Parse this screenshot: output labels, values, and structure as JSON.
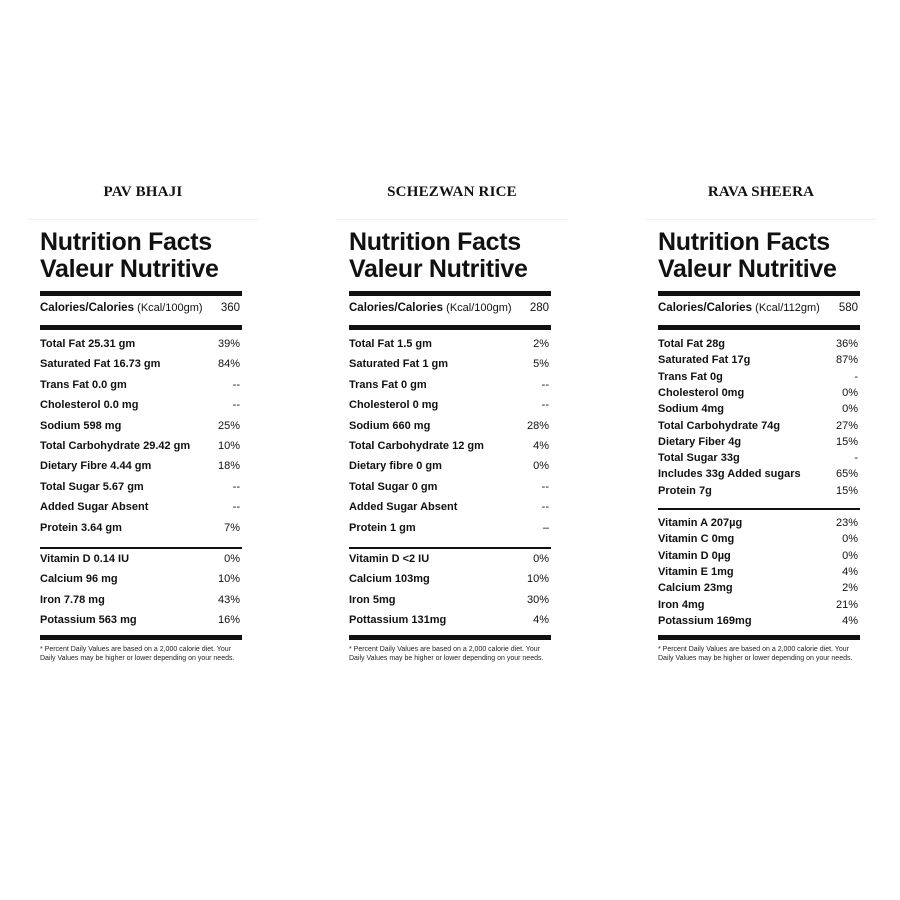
{
  "heading_line1": "Nutrition Facts",
  "heading_line2": "Valeur Nutritive",
  "footnote": "* Percent Daily Values are based on a 2,000 calorie diet. Your Daily Values may be higher or lower depending on your needs.",
  "panels": [
    {
      "title": "PAV BHAJI",
      "cal_label": "Calories/Calories",
      "cal_unit": "(Kcal/100gm)",
      "cal_value": "360",
      "nutrients": [
        [
          "Total Fat 25.31 gm",
          "39%"
        ],
        [
          "Saturated Fat 16.73 gm",
          "84%"
        ],
        [
          "Trans Fat 0.0 gm",
          "--"
        ],
        [
          "Cholesterol 0.0 mg",
          "--"
        ],
        [
          "Sodium 598 mg",
          "25%"
        ],
        [
          "Total Carbohydrate 29.42 gm",
          "10%"
        ],
        [
          "Dietary Fibre 4.44 gm",
          "18%"
        ],
        [
          "Total Sugar 5.67 gm",
          "--"
        ],
        [
          "Added Sugar Absent",
          "--"
        ],
        [
          "Protein 3.64 gm",
          "7%"
        ]
      ],
      "vitamins": [
        [
          "Vitamin D 0.14 IU",
          "0%"
        ],
        [
          "Calcium 96 mg",
          "10%"
        ],
        [
          "Iron 7.78 mg",
          "43%"
        ],
        [
          "Potassium 563 mg",
          "16%"
        ]
      ]
    },
    {
      "title": "SCHEZWAN RICE",
      "cal_label": "Calories/Calories",
      "cal_unit": "(Kcal/100gm)",
      "cal_value": "280",
      "nutrients": [
        [
          "Total Fat 1.5 gm",
          "2%"
        ],
        [
          "Saturated Fat 1 gm",
          "5%"
        ],
        [
          "Trans Fat 0 gm",
          "--"
        ],
        [
          "Cholesterol 0 mg",
          "--"
        ],
        [
          "Sodium 660 mg",
          "28%"
        ],
        [
          "Total Carbohydrate 12 gm",
          "4%"
        ],
        [
          "Dietary fibre 0 gm",
          "0%"
        ],
        [
          "Total Sugar 0 gm",
          "--"
        ],
        [
          "Added Sugar Absent",
          "--"
        ],
        [
          "Protein 1 gm",
          "–"
        ]
      ],
      "vitamins": [
        [
          "Vitamin D <2 IU",
          "0%"
        ],
        [
          "Calcium 103mg",
          "10%"
        ],
        [
          "Iron 5mg",
          "30%"
        ],
        [
          "Pottassium 131mg",
          "4%"
        ]
      ]
    },
    {
      "title": "RAVA SHEERA",
      "cal_label": "Calories/Calories",
      "cal_unit": "(Kcal/112gm)",
      "cal_value": "580",
      "nutrients": [
        [
          "Total Fat 28g",
          "36%"
        ],
        [
          "Saturated Fat 17g",
          "87%"
        ],
        [
          "Trans Fat 0g",
          "-"
        ],
        [
          "Cholesterol 0mg",
          "0%"
        ],
        [
          "Sodium 4mg",
          "0%"
        ],
        [
          "Total Carbohydrate 74g",
          "27%"
        ],
        [
          "Dietary Fiber 4g",
          "15%"
        ],
        [
          "Total Sugar 33g",
          "-"
        ],
        [
          "Includes 33g Added sugars",
          "65%"
        ],
        [
          "Protein 7g",
          "15%"
        ]
      ],
      "vitamins": [
        [
          "Vitamin A 207µg",
          "23%"
        ],
        [
          "Vitamin C 0mg",
          "0%"
        ],
        [
          "Vitamin D 0µg",
          "0%"
        ],
        [
          "Vitamin E 1mg",
          "4%"
        ],
        [
          "Calcium 23mg",
          "2%"
        ],
        [
          "Iron 4mg",
          "21%"
        ],
        [
          "Potassium 169mg",
          "4%"
        ]
      ]
    }
  ]
}
